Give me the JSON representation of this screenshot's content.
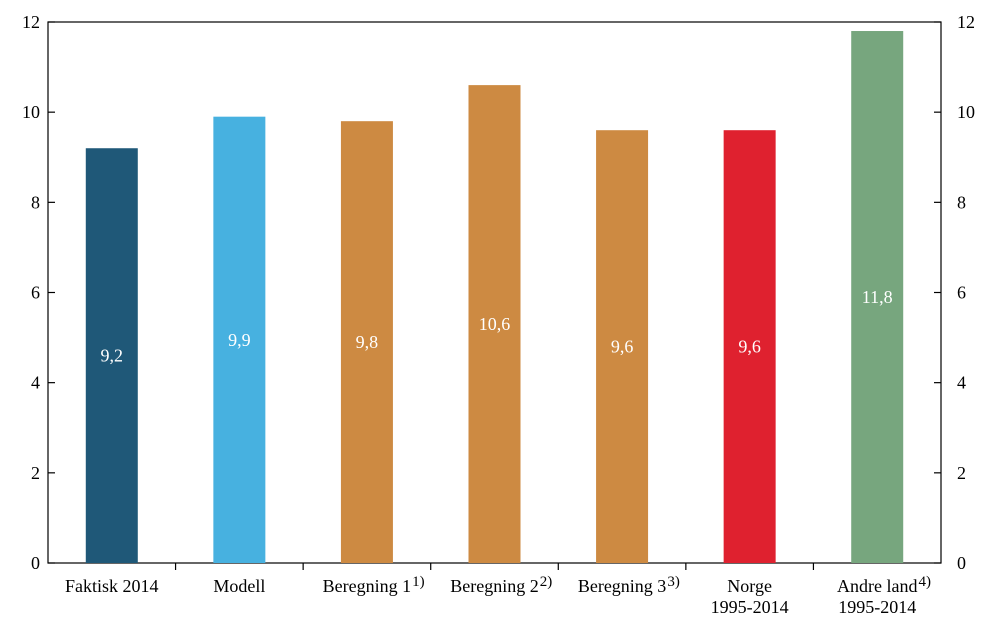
{
  "chart_data": {
    "type": "bar",
    "categories": [
      {
        "lines": [
          "Faktisk 2014"
        ],
        "note": ""
      },
      {
        "lines": [
          "Modell"
        ],
        "note": ""
      },
      {
        "lines": [
          "Beregning 1"
        ],
        "note": "1)"
      },
      {
        "lines": [
          "Beregning 2"
        ],
        "note": "2)"
      },
      {
        "lines": [
          "Beregning 3"
        ],
        "note": "3)"
      },
      {
        "lines": [
          "Norge",
          "1995-2014"
        ],
        "note": ""
      },
      {
        "lines": [
          "Andre land",
          "1995-2014"
        ],
        "note": "4)"
      }
    ],
    "values": [
      9.2,
      9.9,
      9.8,
      10.6,
      9.6,
      9.6,
      11.8
    ],
    "data_labels": [
      "9,2",
      "9,9",
      "9,8",
      "10,6",
      "9,6",
      "9,6",
      "11,8"
    ],
    "colors": [
      "#1f5878",
      "#47b1e0",
      "#cd8a42",
      "#cd8a42",
      "#cd8a42",
      "#df212f",
      "#77a67e"
    ],
    "ylim": [
      0,
      12
    ],
    "y_ticks": [
      0,
      2,
      4,
      6,
      8,
      10,
      12
    ],
    "y_tick_labels": [
      "0",
      "2",
      "4",
      "6",
      "8",
      "10",
      "12"
    ],
    "right_axis": true,
    "grid": false,
    "title": "",
    "xlabel": "",
    "ylabel": ""
  }
}
